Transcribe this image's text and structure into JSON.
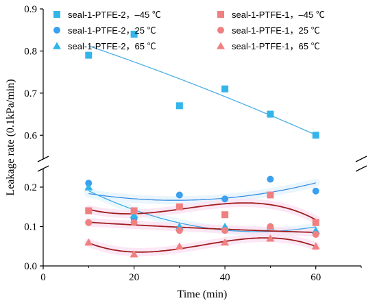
{
  "chart_data": {
    "type": "scatter",
    "xlabel": "Time (min)",
    "ylabel": "Leakage rate (0.1kPa/min)",
    "xlim": [
      0,
      70
    ],
    "x_ticks": [
      "0",
      "20",
      "40",
      "60"
    ],
    "y_axis_break": true,
    "y_upper_range": [
      0.55,
      0.9
    ],
    "y_upper_ticks": [
      "0.6",
      "0.7",
      "0.8",
      "0.9"
    ],
    "y_lower_range": [
      0.0,
      0.24
    ],
    "y_lower_ticks": [
      "0.0",
      "0.1",
      "0.2"
    ],
    "legend_position": "top-right",
    "grid": false,
    "x": [
      10,
      20,
      30,
      40,
      50,
      60
    ],
    "series": [
      {
        "name": "seal-1-PTFE-2，–45 ℃",
        "marker": "square",
        "color": "#33b5ea",
        "fit_color": "#4aaee6",
        "highlight": "#e6f7fd",
        "values": [
          0.79,
          0.84,
          0.67,
          0.71,
          0.65,
          0.6
        ]
      },
      {
        "name": "seal-1-PTFE-2，25 ℃",
        "marker": "circle",
        "color": "#3aa0f0",
        "fit_color": "#3b8fe0",
        "highlight": "#e6f3fd",
        "values": [
          0.21,
          0.12,
          0.18,
          0.17,
          0.22,
          0.19
        ]
      },
      {
        "name": "seal-1-PTFE-2，65 ℃",
        "marker": "triangle",
        "color": "#33b5ea",
        "fit_color": "#3aa8e6",
        "highlight": "#e6f7fd",
        "values": [
          0.2,
          0.13,
          0.1,
          0.1,
          0.1,
          0.09
        ]
      },
      {
        "name": "seal-1-PTFE-1，–45 ℃",
        "marker": "square",
        "color": "#f08080",
        "fit_color": "#9e1d1d",
        "highlight": "#fbe3f3",
        "values": [
          0.14,
          0.14,
          0.15,
          0.13,
          0.18,
          0.11
        ]
      },
      {
        "name": "seal-1-PTFE-1，25 ℃",
        "marker": "circle",
        "color": "#f08080",
        "fit_color": "#9e1d1d",
        "highlight": "#fbe3f3",
        "values": [
          0.11,
          0.11,
          0.09,
          0.09,
          0.1,
          0.08
        ]
      },
      {
        "name": "seal-1-PTFE-1，65 ℃",
        "marker": "triangle",
        "color": "#f08080",
        "fit_color": "#9e1d1d",
        "highlight": "#fbe3f3",
        "values": [
          0.06,
          0.03,
          0.05,
          0.06,
          0.07,
          0.05
        ]
      }
    ]
  }
}
